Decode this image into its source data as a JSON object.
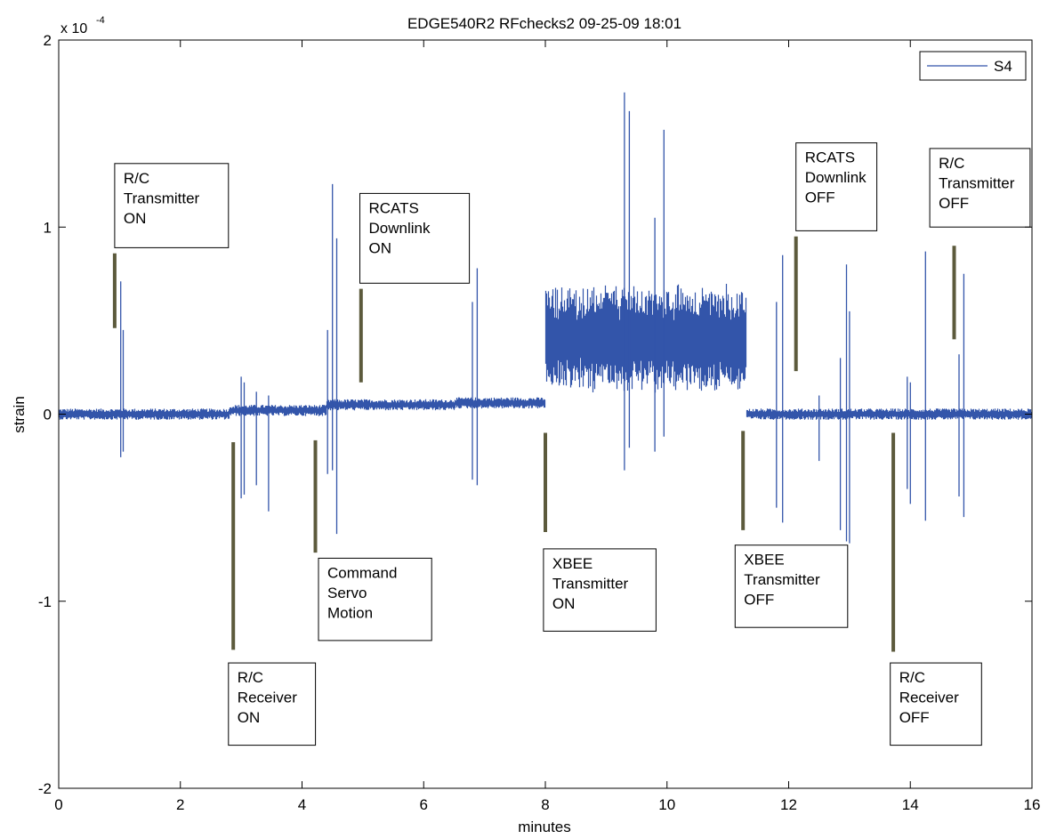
{
  "chart_data": {
    "type": "line",
    "title": "EDGE540R2 RFchecks2 09-25-09 18:01",
    "xlabel": "minutes",
    "ylabel": "strain",
    "y_multiplier_label": "x 10",
    "y_multiplier_exponent": "-4",
    "xlim": [
      0,
      16
    ],
    "ylim": [
      -2,
      2
    ],
    "x_ticks": [
      0,
      2,
      4,
      6,
      8,
      10,
      12,
      14,
      16
    ],
    "x_tick_labels": [
      "0",
      "2",
      "4",
      "6",
      "8",
      "10",
      "12",
      "14",
      "16"
    ],
    "y_ticks": [
      -2,
      -1,
      0,
      1,
      2
    ],
    "y_tick_labels": [
      "-2",
      "-1",
      "0",
      "1",
      "2"
    ],
    "grid": false,
    "legend": {
      "position": "top-right",
      "entries": [
        "S4"
      ]
    },
    "series": [
      {
        "name": "S4",
        "color": "#3355aa",
        "baseline_segments": [
          {
            "x0": 0,
            "x1": 2.8,
            "level": 0.0
          },
          {
            "x0": 2.8,
            "x1": 4.4,
            "level": 0.02
          },
          {
            "x0": 4.4,
            "x1": 6.5,
            "level": 0.05
          },
          {
            "x0": 6.5,
            "x1": 8.0,
            "level": 0.06
          },
          {
            "x0": 8.0,
            "x1": 11.3,
            "level": 0.4
          },
          {
            "x0": 11.3,
            "x1": 16.0,
            "level": 0.0
          }
        ],
        "noise_amplitude": [
          {
            "x0": 0,
            "x1": 8.0,
            "amp": 0.03
          },
          {
            "x0": 8.0,
            "x1": 11.3,
            "amp": 0.24
          },
          {
            "x0": 11.3,
            "x1": 16.0,
            "amp": 0.03
          }
        ],
        "spikes": [
          {
            "x": 1.02,
            "max": 0.71,
            "min": -0.23
          },
          {
            "x": 1.06,
            "max": 0.45,
            "min": -0.2
          },
          {
            "x": 3.0,
            "max": 0.2,
            "min": -0.45
          },
          {
            "x": 3.05,
            "max": 0.17,
            "min": -0.43
          },
          {
            "x": 3.25,
            "max": 0.12,
            "min": -0.38
          },
          {
            "x": 3.45,
            "max": 0.1,
            "min": -0.52
          },
          {
            "x": 4.42,
            "max": 0.45,
            "min": -0.32
          },
          {
            "x": 4.5,
            "max": 1.23,
            "min": -0.3
          },
          {
            "x": 4.57,
            "max": 0.94,
            "min": -0.64
          },
          {
            "x": 6.8,
            "max": 0.6,
            "min": -0.35
          },
          {
            "x": 6.88,
            "max": 0.78,
            "min": -0.38
          },
          {
            "x": 9.3,
            "max": 1.72,
            "min": -0.3
          },
          {
            "x": 9.38,
            "max": 1.62,
            "min": -0.18
          },
          {
            "x": 9.8,
            "max": 1.05,
            "min": -0.2
          },
          {
            "x": 9.95,
            "max": 1.52,
            "min": -0.12
          },
          {
            "x": 11.8,
            "max": 0.6,
            "min": -0.5
          },
          {
            "x": 11.9,
            "max": 0.85,
            "min": -0.58
          },
          {
            "x": 12.5,
            "max": 0.1,
            "min": -0.25
          },
          {
            "x": 12.85,
            "max": 0.3,
            "min": -0.62
          },
          {
            "x": 12.95,
            "max": 0.8,
            "min": -0.68
          },
          {
            "x": 13.0,
            "max": 0.55,
            "min": -0.69
          },
          {
            "x": 13.95,
            "max": 0.2,
            "min": -0.4
          },
          {
            "x": 14.0,
            "max": 0.17,
            "min": -0.48
          },
          {
            "x": 14.25,
            "max": 0.87,
            "min": -0.57
          },
          {
            "x": 14.8,
            "max": 0.32,
            "min": -0.44
          },
          {
            "x": 14.88,
            "max": 0.75,
            "min": -0.55
          }
        ]
      }
    ],
    "event_markers": [
      {
        "x": 0.92,
        "y0": 0.46,
        "y1": 0.86
      },
      {
        "x": 2.87,
        "y0": -1.26,
        "y1": -0.15
      },
      {
        "x": 4.22,
        "y0": -0.74,
        "y1": -0.14
      },
      {
        "x": 4.97,
        "y0": 0.17,
        "y1": 0.67
      },
      {
        "x": 8.0,
        "y0": -0.63,
        "y1": -0.1
      },
      {
        "x": 11.25,
        "y0": -0.62,
        "y1": -0.09
      },
      {
        "x": 12.12,
        "y0": 0.23,
        "y1": 0.95
      },
      {
        "x": 13.72,
        "y0": -1.27,
        "y1": -0.1
      },
      {
        "x": 14.72,
        "y0": 0.4,
        "y1": 0.9
      }
    ],
    "annotations": [
      {
        "lines": [
          "R/C",
          "Transmitter",
          "ON"
        ],
        "x0": 0.92,
        "x1": 2.79,
        "y0": 0.89,
        "y1": 1.34
      },
      {
        "lines": [
          "R/C",
          "Receiver",
          "ON"
        ],
        "x0": 2.79,
        "x1": 4.22,
        "y0": -1.77,
        "y1": -1.33
      },
      {
        "lines": [
          "Command",
          "Servo",
          "Motion"
        ],
        "x0": 4.27,
        "x1": 6.13,
        "y0": -1.21,
        "y1": -0.77
      },
      {
        "lines": [
          "RCATS",
          "Downlink",
          "ON"
        ],
        "x0": 4.95,
        "x1": 6.75,
        "y0": 0.7,
        "y1": 1.18
      },
      {
        "lines": [
          "XBEE",
          "Transmitter",
          "ON"
        ],
        "x0": 7.97,
        "x1": 9.82,
        "y0": -1.16,
        "y1": -0.72
      },
      {
        "lines": [
          "XBEE",
          "Transmitter",
          "OFF"
        ],
        "x0": 11.12,
        "x1": 12.97,
        "y0": -1.14,
        "y1": -0.7
      },
      {
        "lines": [
          "RCATS",
          "Downlink",
          "OFF"
        ],
        "x0": 12.12,
        "x1": 13.45,
        "y0": 0.98,
        "y1": 1.45
      },
      {
        "lines": [
          "R/C",
          "Receiver",
          "OFF"
        ],
        "x0": 13.67,
        "x1": 15.17,
        "y0": -1.77,
        "y1": -1.33
      },
      {
        "lines": [
          "R/C",
          "Transmitter",
          "OFF"
        ],
        "x0": 14.32,
        "x1": 15.97,
        "y0": 1.0,
        "y1": 1.42
      }
    ]
  }
}
